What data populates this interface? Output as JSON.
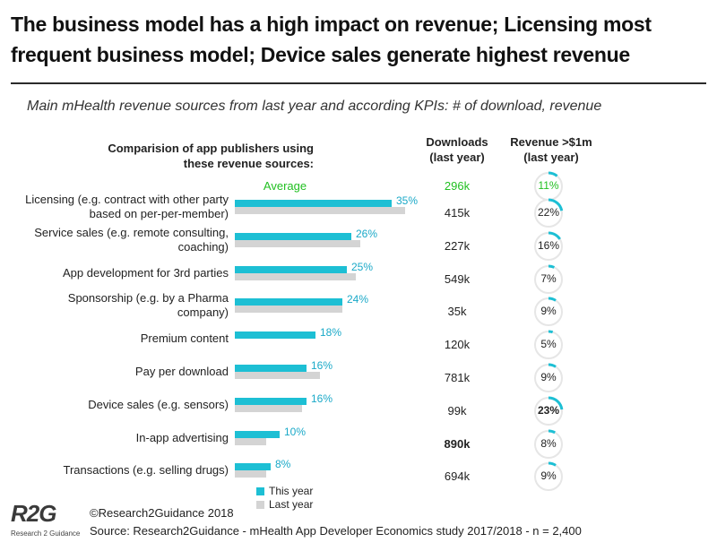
{
  "title": "The business model has a high impact on revenue; Licensing most frequent business model; Device sales generate highest revenue",
  "subtitle": "Main mHealth revenue sources from last year and according KPIs: # of download, revenue",
  "column_headers": {
    "comparison_line1": "Comparision of app publishers using",
    "comparison_line2": "these revenue sources:",
    "downloads_line1": "Downloads",
    "downloads_line2": "(last year)",
    "revenue_line1": "Revenue >$1m",
    "revenue_line2": "(last year)"
  },
  "average": {
    "label": "Average",
    "downloads": "296k",
    "revenue": "11%",
    "revenue_value": 11
  },
  "legend": {
    "this_year": "This year",
    "last_year": "Last year"
  },
  "colors": {
    "this_year": "#1dbfd4",
    "last_year": "#d4d4d4",
    "average": "#22c022",
    "ring_bg": "#e6e6e6"
  },
  "chart_data": {
    "type": "bar",
    "orientation": "horizontal",
    "categories": [
      [
        "Licensing (e.g. contract with other party",
        "based on per-per-member)"
      ],
      [
        "Service sales (e.g. remote consulting,",
        "coaching)"
      ],
      [
        "App development for 3rd parties"
      ],
      [
        "Sponsorship (e.g. by a Pharma",
        "company)"
      ],
      [
        "Premium content"
      ],
      [
        "Pay per download"
      ],
      [
        "Device sales (e.g. sensors)"
      ],
      [
        "In-app advertising"
      ],
      [
        "Transactions (e.g. selling drugs)"
      ]
    ],
    "series": [
      {
        "name": "This year",
        "values": [
          35,
          26,
          25,
          24,
          18,
          16,
          16,
          10,
          8
        ]
      },
      {
        "name": "Last year",
        "values": [
          38,
          28,
          27,
          24,
          null,
          19,
          15,
          7,
          7
        ]
      }
    ],
    "value_labels": [
      "35%",
      "26%",
      "25%",
      "24%",
      "18%",
      "16%",
      "16%",
      "10%",
      "8%"
    ],
    "downloads": [
      "415k",
      "227k",
      "549k",
      "35k",
      "120k",
      "781k",
      "99k",
      "890k",
      "694k"
    ],
    "downloads_bold": [
      false,
      false,
      false,
      false,
      false,
      false,
      false,
      true,
      false
    ],
    "revenue_labels": [
      "22%",
      "16%",
      "7%",
      "9%",
      "5%",
      "9%",
      "23%",
      "8%",
      "9%"
    ],
    "revenue_values": [
      22,
      16,
      7,
      9,
      5,
      9,
      23,
      8,
      9
    ],
    "revenue_bold": [
      false,
      false,
      false,
      false,
      false,
      false,
      true,
      false,
      false
    ],
    "legend_placement": "bottom"
  },
  "footer": {
    "logo_text": "R2G",
    "logo_subtext": "Research 2 Guidance",
    "copyright": "©Research2Guidance 2018",
    "source": "Source:  Research2Guidance - mHealth App Developer Economics study 2017/2018 - n = 2,400"
  }
}
